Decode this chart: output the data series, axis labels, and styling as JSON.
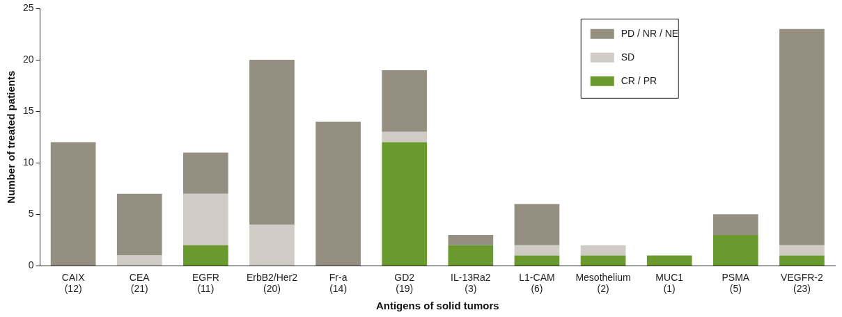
{
  "chart_data": {
    "type": "bar",
    "stacked": true,
    "xlabel": "Antigens of solid tumors",
    "ylabel": "Number of treated patients",
    "categories": [
      "CAIX\n(12)",
      "CEA\n(21)",
      "EGFR\n(11)",
      "ErbB2/Her2\n(20)",
      "Fr-a\n(14)",
      "GD2\n(19)",
      "IL-13Ra2\n(3)",
      "L1-CAM\n(6)",
      "Mesothelium\n(2)",
      "MUC1\n(1)",
      "PSMA\n(5)",
      "VEGFR-2\n(23)"
    ],
    "series": [
      {
        "name": "CR / PR",
        "color": "#6a9a2e",
        "values": [
          0,
          0,
          2,
          0,
          0,
          12,
          2,
          1,
          1,
          1,
          3,
          1
        ]
      },
      {
        "name": "SD",
        "color": "#d0cbc4",
        "values": [
          0,
          1,
          5,
          4,
          0,
          1,
          0,
          1,
          1,
          0,
          0,
          1
        ]
      },
      {
        "name": "PD / NR / NE",
        "color": "#948f80",
        "values": [
          12,
          6,
          4,
          16,
          14,
          6,
          1,
          4,
          0,
          0,
          2,
          21
        ]
      }
    ],
    "ylim": [
      0,
      25
    ],
    "yticks": [
      0,
      5,
      10,
      15,
      20,
      25
    ],
    "grid": false,
    "legend": "top right"
  }
}
